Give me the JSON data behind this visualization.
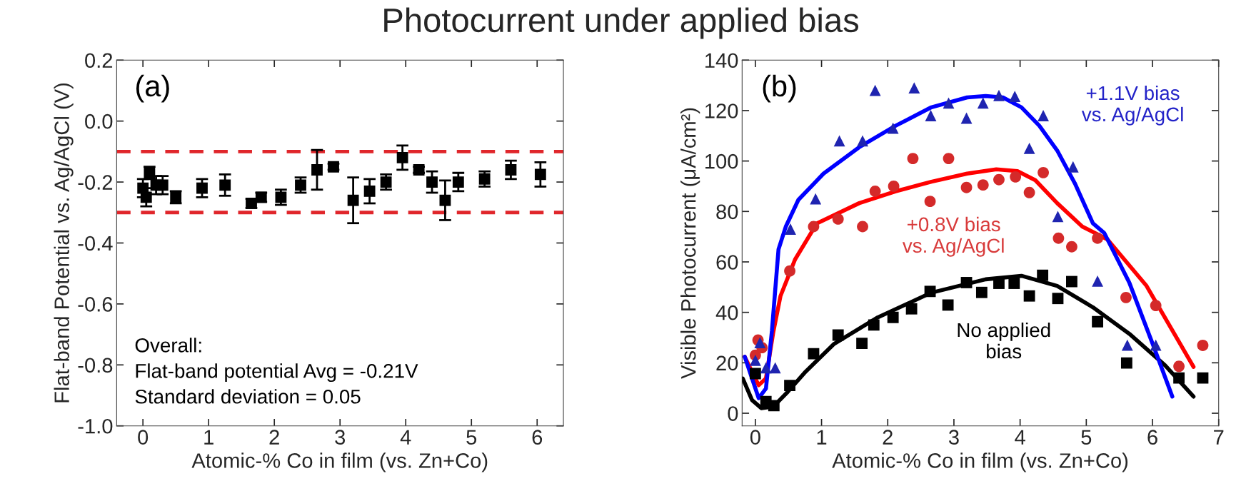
{
  "chart_data": [
    {
      "type": "scatter",
      "title": "Photocurrent under applied bias",
      "xlabel": "Atomic-% Co in film (vs. Zn+Co)",
      "ylabel": "Flat-band Potential vs. Ag/AgCl (V)",
      "annotations": [
        "(a)",
        "Overall:\nFlat-band potential Avg = -0.21V\nStandard deviation = 0.05"
      ],
      "xlim": [
        -0.4,
        6.4
      ],
      "xticks": [
        0,
        1,
        2,
        3,
        4,
        5,
        6
      ],
      "ylim": [
        -1.0,
        0.2
      ],
      "yticks": [
        {
          "value": -1.0,
          "label": "-1.0"
        },
        {
          "value": -0.8,
          "label": "-0.8"
        },
        {
          "value": -0.6,
          "label": "-0.6"
        },
        {
          "value": -0.4,
          "label": "-0.4"
        },
        {
          "value": -0.2,
          "label": "-0.2"
        },
        {
          "value": 0.0,
          "label": "0.0"
        },
        {
          "value": 0.2,
          "label": "0.2"
        }
      ],
      "grid": false,
      "legend": false,
      "ref_lines": [
        {
          "axis": "y",
          "value": -0.1,
          "color": "#e0262b",
          "line_style": "dashed"
        },
        {
          "axis": "y",
          "value": -0.3,
          "color": "#e0262b",
          "line_style": "dashed"
        }
      ],
      "series": [
        {
          "color": "#000000",
          "marker": "square",
          "x": [
            0.0,
            0.05,
            0.1,
            0.2,
            0.3,
            0.5,
            0.9,
            1.25,
            1.65,
            1.8,
            2.1,
            2.4,
            2.65,
            2.9,
            3.2,
            3.45,
            3.7,
            3.95,
            4.2,
            4.4,
            4.6,
            4.8,
            5.2,
            5.6,
            6.05
          ],
          "values": [
            -0.22,
            -0.25,
            -0.17,
            -0.21,
            -0.21,
            -0.25,
            -0.22,
            -0.21,
            -0.27,
            -0.25,
            -0.25,
            -0.21,
            -0.16,
            -0.15,
            -0.26,
            -0.23,
            -0.2,
            -0.12,
            -0.16,
            -0.2,
            -0.26,
            -0.2,
            -0.19,
            -0.16,
            -0.175
          ],
          "errors": [
            0.03,
            0.03,
            0.02,
            0.03,
            0.03,
            0.02,
            0.03,
            0.035,
            0.015,
            0.015,
            0.025,
            0.025,
            0.065,
            0.01,
            0.075,
            0.04,
            0.025,
            0.04,
            0.01,
            0.035,
            0.065,
            0.03,
            0.025,
            0.03,
            0.04
          ]
        }
      ]
    },
    {
      "type": "scatter",
      "xlabel": "Atomic-% Co in film (vs. Zn+Co)",
      "ylabel": "Visible Photocurrent (μA/cm²)",
      "annotations": [
        "(b)",
        "+1.1V bias\nvs. Ag/AgCl",
        "+0.8V bias\nvs. Ag/AgCl",
        "No applied\nbias"
      ],
      "xlim": [
        -0.2,
        7.0
      ],
      "xticks": [
        0,
        1,
        2,
        3,
        4,
        5,
        6,
        7
      ],
      "ylim": [
        -5,
        140
      ],
      "yticks": [
        0,
        20,
        40,
        60,
        80,
        100,
        120,
        140
      ],
      "grid": false,
      "legend": false,
      "series": [
        {
          "color": "#000000",
          "marker": "square",
          "x": [
            0.0,
            0.16,
            0.28,
            0.52,
            0.88,
            1.25,
            1.61,
            1.79,
            2.08,
            2.36,
            2.64,
            2.91,
            3.19,
            3.42,
            3.68,
            3.91,
            4.14,
            4.34,
            4.57,
            4.78,
            5.17,
            5.61,
            6.4,
            6.76
          ],
          "values": [
            15.7,
            4.6,
            3,
            11,
            23.6,
            31,
            27.7,
            35,
            38,
            41.4,
            48.3,
            42.9,
            51.8,
            47.9,
            51.5,
            51.5,
            46.5,
            54.7,
            45.5,
            52.2,
            36.3,
            19.9,
            14,
            14
          ]
        },
        {
          "color": "#d42a2a",
          "marker": "circle",
          "x": [
            0.0,
            0.04,
            0.1,
            0.52,
            0.88,
            1.25,
            1.62,
            1.81,
            2.09,
            2.38,
            2.64,
            2.92,
            3.19,
            3.44,
            3.68,
            3.93,
            4.14,
            4.35,
            4.58,
            4.78,
            5.17,
            5.6,
            6.05,
            6.4,
            6.76
          ],
          "values": [
            23,
            29,
            26,
            56.4,
            74,
            77,
            74,
            88,
            90,
            101,
            84,
            101,
            89.5,
            90.5,
            92.6,
            93.7,
            87.5,
            95.4,
            69.4,
            66,
            69.4,
            45.9,
            42.7,
            18.6,
            26.9
          ]
        },
        {
          "color": "#1f24b0",
          "marker": "triangle",
          "x": [
            0.0,
            0.07,
            0.16,
            0.3,
            0.53,
            0.91,
            1.27,
            1.62,
            1.81,
            2.08,
            2.4,
            2.65,
            2.92,
            3.19,
            3.44,
            3.68,
            3.92,
            4.14,
            4.35,
            4.57,
            4.8,
            5.17,
            5.62,
            6.05
          ],
          "values": [
            21,
            28,
            18,
            18,
            73,
            85,
            108,
            108,
            128,
            113,
            129,
            118,
            123,
            117,
            123,
            126,
            125.6,
            105,
            118,
            78,
            97.7,
            52.4,
            27,
            27
          ]
        },
        {
          "type": "line",
          "color": "#000000",
          "marker": "none",
          "line_style": "solid",
          "x": [
            -0.19,
            -0.05,
            0.09,
            0.27,
            0.49,
            0.76,
            1.19,
            1.85,
            2.66,
            3.48,
            4.02,
            4.56,
            5.1,
            5.65,
            6.19,
            6.62
          ],
          "values": [
            13.8,
            5.2,
            2,
            2.6,
            8.5,
            16.5,
            27.5,
            38,
            47.8,
            53.1,
            54.5,
            50.5,
            42,
            31.5,
            19,
            6.6
          ]
        },
        {
          "type": "line",
          "color": "#ff0000",
          "marker": "none",
          "line_style": "solid",
          "x": [
            -0.16,
            -0.05,
            0.05,
            0.16,
            0.27,
            0.38,
            0.6,
            0.93,
            1.57,
            2.12,
            2.66,
            3.2,
            3.64,
            3.96,
            4.23,
            4.56,
            4.94,
            5.32,
            5.91,
            6.62
          ],
          "values": [
            22.4,
            16.4,
            11.1,
            13.8,
            32,
            46.5,
            61,
            75.3,
            83.3,
            88,
            91.8,
            95,
            96.7,
            96,
            92.4,
            83.3,
            74,
            68.9,
            50.5,
            18.4
          ]
        },
        {
          "type": "line",
          "color": "#0000ff",
          "marker": "none",
          "line_style": "solid",
          "x": [
            -0.16,
            -0.05,
            0.05,
            0.16,
            0.25,
            0.35,
            0.46,
            0.65,
            1.03,
            1.57,
            2.12,
            2.66,
            3.2,
            3.48,
            3.74,
            4.02,
            4.29,
            4.56,
            4.83,
            5.1,
            5.27,
            5.65,
            6.03,
            6.3
          ],
          "values": [
            22.4,
            13.8,
            6,
            9.8,
            32.6,
            65,
            74,
            84.6,
            95,
            105.5,
            114,
            121.3,
            125.2,
            125.8,
            125.2,
            121.3,
            114,
            104.2,
            91,
            75.3,
            71.5,
            51.8,
            25.6,
            6.6
          ]
        }
      ]
    }
  ]
}
